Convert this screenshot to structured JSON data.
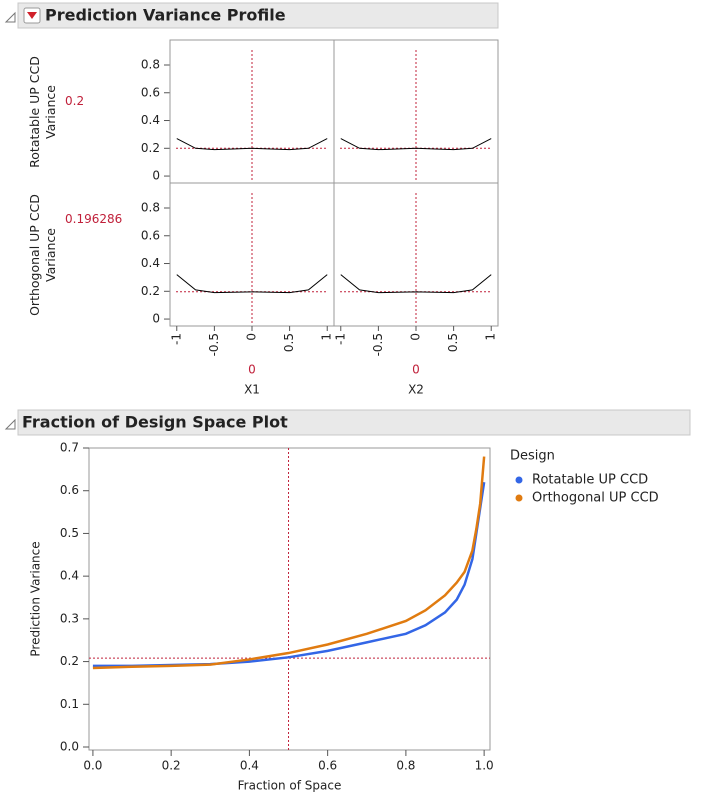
{
  "chart_data": [
    {
      "type": "profiler",
      "title": "Prediction Variance Profile",
      "x": [
        -1,
        -0.75,
        -0.5,
        -0.25,
        0,
        0.25,
        0.5,
        0.75,
        1
      ],
      "xlim": [
        -1.09,
        1.09
      ],
      "xticks": [
        -1,
        -0.5,
        0,
        0.5,
        1
      ],
      "ylim": [
        -0.05,
        0.98
      ],
      "yticks": [
        0,
        0.2,
        0.4,
        0.6,
        0.8
      ],
      "rows": [
        {
          "label": "Rotatable UP CCD Variance",
          "current": 0.2,
          "values": [
            0.27,
            0.2,
            0.19,
            0.195,
            0.2,
            0.195,
            0.19,
            0.2,
            0.27
          ]
        },
        {
          "label": "Orthogonal UP CCD Variance",
          "current": 0.196286,
          "values": [
            0.32,
            0.21,
            0.19,
            0.193,
            0.196,
            0.193,
            0.19,
            0.21,
            0.32
          ]
        }
      ],
      "columns": [
        {
          "label": "X1",
          "current": 0
        },
        {
          "label": "X2",
          "current": 0
        }
      ],
      "color": "#000000",
      "ref_color": "#c0203a"
    },
    {
      "type": "line",
      "title": "Fraction of Design Space Plot",
      "x_label": "Fraction of Space",
      "y_label": "Prediction Variance",
      "legend_title": "Design",
      "x": [
        0,
        0.1,
        0.2,
        0.3,
        0.4,
        0.5,
        0.6,
        0.7,
        0.8,
        0.85,
        0.9,
        0.93,
        0.95,
        0.97,
        0.98,
        0.99,
        1.0
      ],
      "series": [
        {
          "name": "Rotatable UP CCD",
          "color": "#3366e6",
          "values": [
            0.19,
            0.19,
            0.192,
            0.194,
            0.2,
            0.21,
            0.225,
            0.245,
            0.265,
            0.285,
            0.315,
            0.345,
            0.38,
            0.44,
            0.5,
            0.56,
            0.62
          ]
        },
        {
          "name": "Orthogonal UP CCD",
          "color": "#e07b10",
          "values": [
            0.185,
            0.188,
            0.19,
            0.193,
            0.205,
            0.22,
            0.24,
            0.265,
            0.295,
            0.32,
            0.355,
            0.385,
            0.41,
            0.46,
            0.51,
            0.57,
            0.68
          ]
        }
      ],
      "xlim": [
        -0.01,
        1.015
      ],
      "xticks": [
        {
          "value": 0,
          "label": "0.0"
        },
        0.2,
        0.4,
        0.6,
        0.8,
        {
          "value": 1,
          "label": "1.0"
        }
      ],
      "ylim": [
        -0.007,
        0.7
      ],
      "yticks": [
        {
          "value": 0,
          "label": "0.0"
        },
        0.1,
        0.2,
        0.3,
        0.4,
        0.5,
        0.6,
        0.7
      ],
      "ref_x": 0.5,
      "ref_y": 0.208,
      "ref_color": "#c0203a",
      "legend": "right"
    }
  ]
}
